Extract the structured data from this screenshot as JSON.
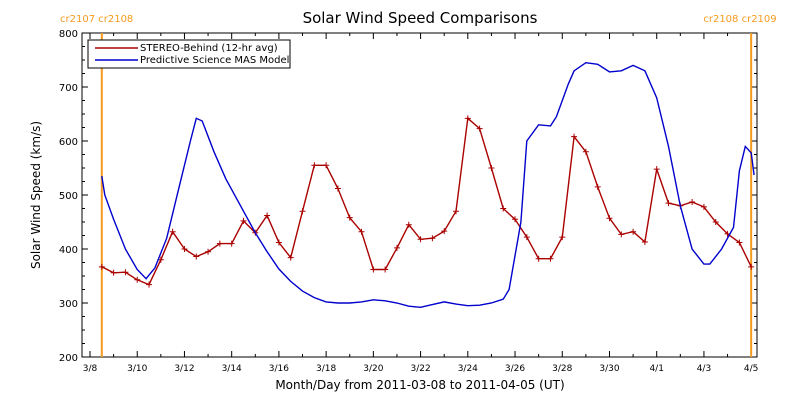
{
  "chart_data": {
    "type": "line",
    "title": "Solar Wind Speed Comparisons",
    "xlabel": "Month/Day from 2011-03-08 to 2011-04-05 (UT)",
    "ylabel": "Solar Wind Speed (km/s)",
    "xlim": [
      "2011-03-08",
      "2011-04-05"
    ],
    "ylim": [
      200,
      800
    ],
    "yticks": [
      200,
      300,
      400,
      500,
      600,
      700,
      800
    ],
    "xticks": [
      {
        "date": "2011-03-08",
        "label": "3/8"
      },
      {
        "date": "2011-03-10",
        "label": "3/10"
      },
      {
        "date": "2011-03-12",
        "label": "3/12"
      },
      {
        "date": "2011-03-14",
        "label": "3/14"
      },
      {
        "date": "2011-03-16",
        "label": "3/16"
      },
      {
        "date": "2011-03-18",
        "label": "3/18"
      },
      {
        "date": "2011-03-20",
        "label": "3/20"
      },
      {
        "date": "2011-03-22",
        "label": "3/22"
      },
      {
        "date": "2011-03-24",
        "label": "3/24"
      },
      {
        "date": "2011-03-26",
        "label": "3/26"
      },
      {
        "date": "2011-03-28",
        "label": "3/28"
      },
      {
        "date": "2011-03-30",
        "label": "3/30"
      },
      {
        "date": "2011-04-01",
        "label": "4/1"
      },
      {
        "date": "2011-04-03",
        "label": "4/3"
      },
      {
        "date": "2011-04-05",
        "label": "4/5"
      }
    ],
    "legend": {
      "position": "top-left"
    },
    "series": [
      {
        "name": "STEREO-Behind (12-hr avg)",
        "color": "#aa0000",
        "markers": true,
        "points": [
          [
            "2011-03-08 12:00",
            367
          ],
          [
            "2011-03-09 00:00",
            356
          ],
          [
            "2011-03-09 12:00",
            357
          ],
          [
            "2011-03-10 00:00",
            343
          ],
          [
            "2011-03-10 12:00",
            334
          ],
          [
            "2011-03-11 00:00",
            380
          ],
          [
            "2011-03-11 12:00",
            432
          ],
          [
            "2011-03-12 00:00",
            400
          ],
          [
            "2011-03-12 12:00",
            386
          ],
          [
            "2011-03-13 00:00",
            395
          ],
          [
            "2011-03-13 12:00",
            410
          ],
          [
            "2011-03-14 00:00",
            410
          ],
          [
            "2011-03-14 12:00",
            452
          ],
          [
            "2011-03-15 00:00",
            430
          ],
          [
            "2011-03-15 12:00",
            462
          ],
          [
            "2011-03-16 00:00",
            412
          ],
          [
            "2011-03-16 12:00",
            384
          ],
          [
            "2011-03-17 00:00",
            470
          ],
          [
            "2011-03-17 12:00",
            555
          ],
          [
            "2011-03-18 00:00",
            555
          ],
          [
            "2011-03-18 12:00",
            512
          ],
          [
            "2011-03-19 00:00",
            458
          ],
          [
            "2011-03-19 12:00",
            432
          ],
          [
            "2011-03-20 00:00",
            362
          ],
          [
            "2011-03-20 12:00",
            362
          ],
          [
            "2011-03-21 00:00",
            402
          ],
          [
            "2011-03-21 12:00",
            445
          ],
          [
            "2011-03-22 00:00",
            418
          ],
          [
            "2011-03-22 12:00",
            420
          ],
          [
            "2011-03-23 00:00",
            433
          ],
          [
            "2011-03-23 12:00",
            470
          ],
          [
            "2011-03-24 00:00",
            642
          ],
          [
            "2011-03-24 12:00",
            623
          ],
          [
            "2011-03-25 00:00",
            550
          ],
          [
            "2011-03-25 12:00",
            475
          ],
          [
            "2011-03-26 00:00",
            455
          ],
          [
            "2011-03-26 12:00",
            422
          ],
          [
            "2011-03-27 00:00",
            382
          ],
          [
            "2011-03-27 12:00",
            382
          ],
          [
            "2011-03-28 00:00",
            422
          ],
          [
            "2011-03-28 12:00",
            608
          ],
          [
            "2011-03-29 00:00",
            580
          ],
          [
            "2011-03-29 12:00",
            515
          ],
          [
            "2011-03-30 00:00",
            457
          ],
          [
            "2011-03-30 12:00",
            427
          ],
          [
            "2011-03-31 00:00",
            432
          ],
          [
            "2011-03-31 12:00",
            413
          ],
          [
            "2011-04-01 00:00",
            548
          ],
          [
            "2011-04-01 12:00",
            485
          ],
          [
            "2011-04-02 00:00",
            480
          ],
          [
            "2011-04-02 12:00",
            487
          ],
          [
            "2011-04-03 00:00",
            478
          ],
          [
            "2011-04-03 12:00",
            450
          ],
          [
            "2011-04-04 00:00",
            428
          ],
          [
            "2011-04-04 12:00",
            412
          ],
          [
            "2011-04-05 00:00",
            367
          ]
        ]
      },
      {
        "name": "Predictive Science MAS Model",
        "color": "#0000cc",
        "markers": false,
        "points": [
          [
            "2011-03-08 12:00",
            535
          ],
          [
            "2011-03-08 15:00",
            500
          ],
          [
            "2011-03-09 00:00",
            455
          ],
          [
            "2011-03-09 12:00",
            400
          ],
          [
            "2011-03-10 00:00",
            362
          ],
          [
            "2011-03-10 09:00",
            345
          ],
          [
            "2011-03-10 18:00",
            365
          ],
          [
            "2011-03-11 06:00",
            420
          ],
          [
            "2011-03-11 18:00",
            510
          ],
          [
            "2011-03-12 06:00",
            600
          ],
          [
            "2011-03-12 12:00",
            642
          ],
          [
            "2011-03-12 18:00",
            637
          ],
          [
            "2011-03-13 06:00",
            580
          ],
          [
            "2011-03-13 18:00",
            530
          ],
          [
            "2011-03-14 12:00",
            470
          ],
          [
            "2011-03-15 00:00",
            430
          ],
          [
            "2011-03-15 12:00",
            395
          ],
          [
            "2011-03-16 00:00",
            363
          ],
          [
            "2011-03-16 12:00",
            340
          ],
          [
            "2011-03-17 00:00",
            322
          ],
          [
            "2011-03-17 12:00",
            310
          ],
          [
            "2011-03-18 00:00",
            302
          ],
          [
            "2011-03-18 12:00",
            300
          ],
          [
            "2011-03-19 00:00",
            300
          ],
          [
            "2011-03-19 12:00",
            302
          ],
          [
            "2011-03-20 00:00",
            306
          ],
          [
            "2011-03-20 12:00",
            304
          ],
          [
            "2011-03-21 00:00",
            300
          ],
          [
            "2011-03-21 12:00",
            294
          ],
          [
            "2011-03-22 00:00",
            292
          ],
          [
            "2011-03-22 12:00",
            297
          ],
          [
            "2011-03-23 00:00",
            302
          ],
          [
            "2011-03-23 12:00",
            298
          ],
          [
            "2011-03-24 00:00",
            295
          ],
          [
            "2011-03-24 12:00",
            296
          ],
          [
            "2011-03-25 00:00",
            300
          ],
          [
            "2011-03-25 12:00",
            307
          ],
          [
            "2011-03-25 18:00",
            325
          ],
          [
            "2011-03-26 06:00",
            450
          ],
          [
            "2011-03-26 12:00",
            600
          ],
          [
            "2011-03-27 00:00",
            630
          ],
          [
            "2011-03-27 12:00",
            628
          ],
          [
            "2011-03-27 18:00",
            645
          ],
          [
            "2011-03-28 06:00",
            705
          ],
          [
            "2011-03-28 12:00",
            730
          ],
          [
            "2011-03-29 00:00",
            745
          ],
          [
            "2011-03-29 12:00",
            742
          ],
          [
            "2011-03-30 00:00",
            728
          ],
          [
            "2011-03-30 12:00",
            730
          ],
          [
            "2011-03-31 00:00",
            740
          ],
          [
            "2011-03-31 12:00",
            730
          ],
          [
            "2011-04-01 00:00",
            680
          ],
          [
            "2011-04-01 12:00",
            590
          ],
          [
            "2011-04-02 00:00",
            480
          ],
          [
            "2011-04-02 12:00",
            400
          ],
          [
            "2011-04-03 00:00",
            372
          ],
          [
            "2011-04-03 06:00",
            372
          ],
          [
            "2011-04-03 18:00",
            400
          ],
          [
            "2011-04-04 06:00",
            440
          ],
          [
            "2011-04-04 12:00",
            545
          ],
          [
            "2011-04-04 18:00",
            590
          ],
          [
            "2011-04-05 00:00",
            578
          ],
          [
            "2011-04-05 03:00",
            537
          ]
        ]
      }
    ],
    "markers": [
      {
        "date": "2011-03-08 12:00",
        "label": "cr2107 cr2108",
        "color": "#f59a1e"
      },
      {
        "date": "2011-04-05 00:00",
        "label": "cr2108 cr2109",
        "color": "#f59a1e"
      }
    ]
  }
}
